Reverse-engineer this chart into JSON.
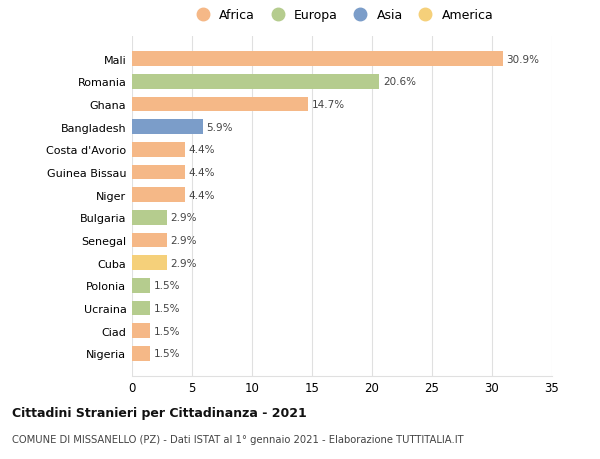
{
  "categories": [
    "Mali",
    "Romania",
    "Ghana",
    "Bangladesh",
    "Costa d'Avorio",
    "Guinea Bissau",
    "Niger",
    "Bulgaria",
    "Senegal",
    "Cuba",
    "Polonia",
    "Ucraina",
    "Ciad",
    "Nigeria"
  ],
  "values": [
    30.9,
    20.6,
    14.7,
    5.9,
    4.4,
    4.4,
    4.4,
    2.9,
    2.9,
    2.9,
    1.5,
    1.5,
    1.5,
    1.5
  ],
  "continents": [
    "Africa",
    "Europa",
    "Africa",
    "Asia",
    "Africa",
    "Africa",
    "Africa",
    "Europa",
    "Africa",
    "America",
    "Europa",
    "Europa",
    "Africa",
    "Africa"
  ],
  "colors": {
    "Africa": "#F5B887",
    "Europa": "#B5CC8E",
    "Asia": "#7B9DC9",
    "America": "#F5D07A"
  },
  "legend_order": [
    "Africa",
    "Europa",
    "Asia",
    "America"
  ],
  "xlim": [
    0,
    35
  ],
  "xticks": [
    0,
    5,
    10,
    15,
    20,
    25,
    30,
    35
  ],
  "title": "Cittadini Stranieri per Cittadinanza - 2021",
  "subtitle": "COMUNE DI MISSANELLO (PZ) - Dati ISTAT al 1° gennaio 2021 - Elaborazione TUTTITALIA.IT",
  "background_color": "#ffffff",
  "grid_color": "#e0e0e0",
  "bar_height": 0.65
}
